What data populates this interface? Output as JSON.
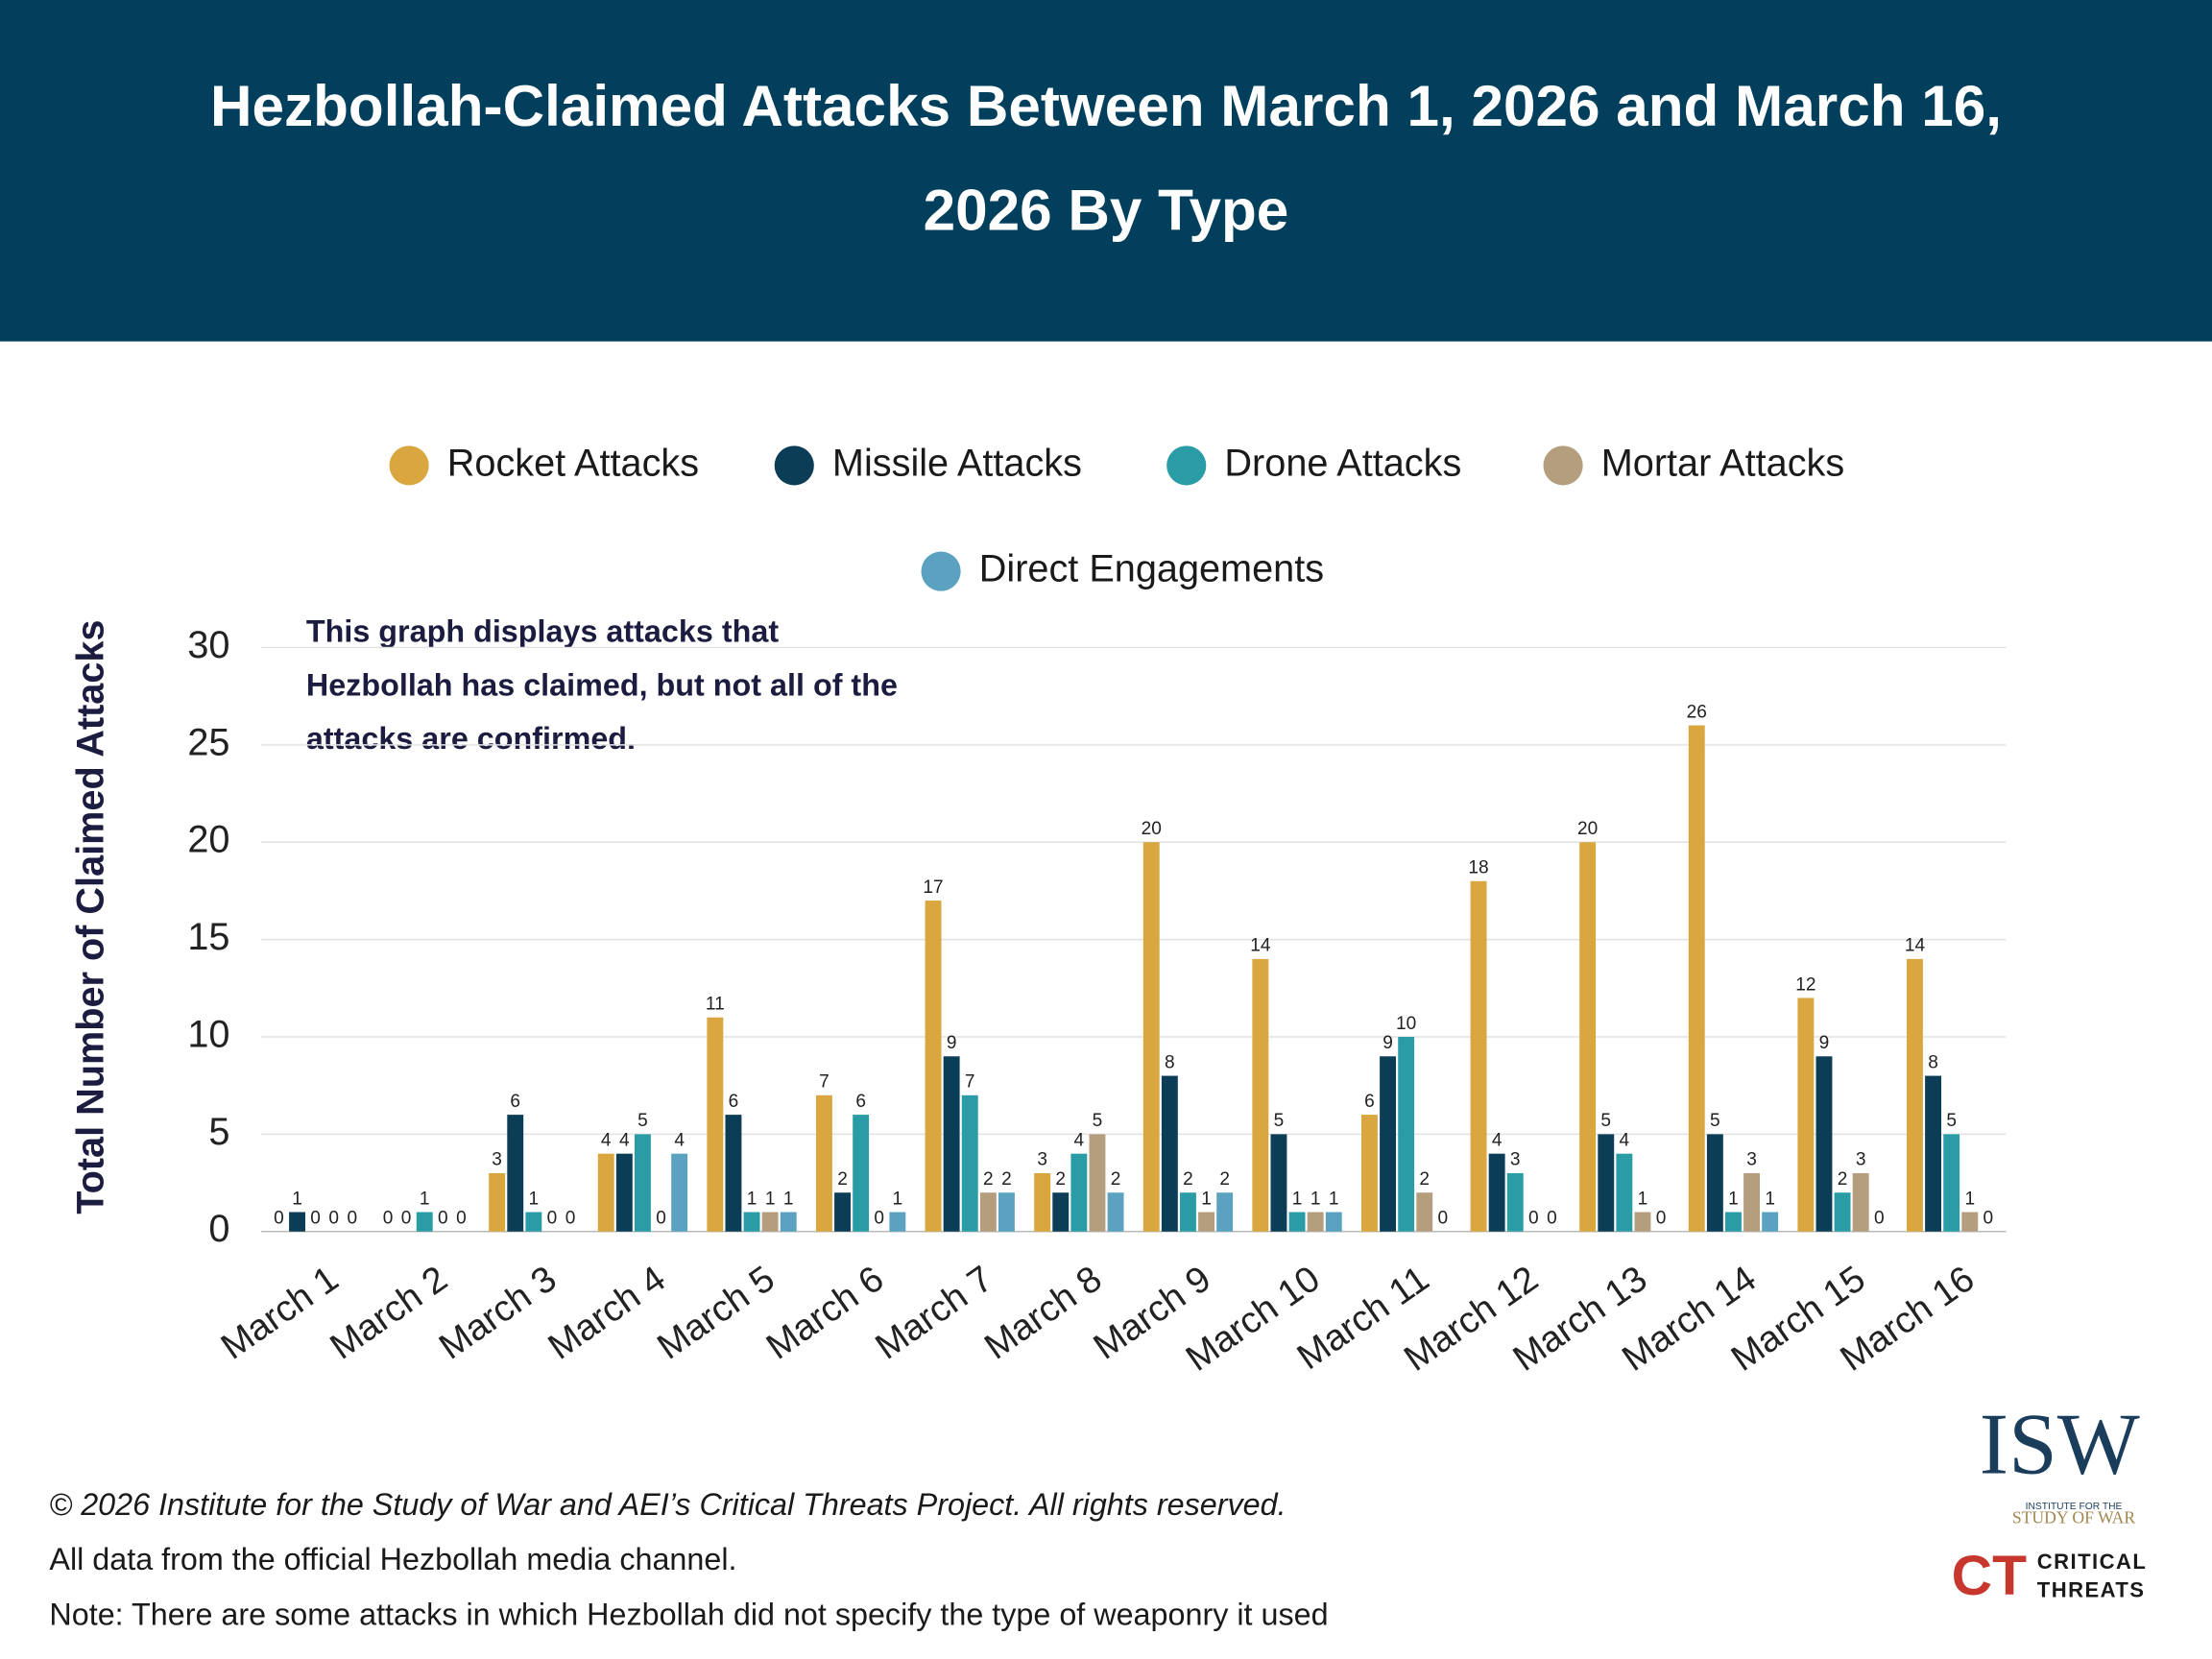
{
  "chart_data": {
    "type": "bar",
    "title": "Hezbollah-Claimed Attacks Between March 1, 2026 and March 16, 2026 By Type",
    "ylabel": "Total Number of Claimed Attacks",
    "annotation": "This graph displays attacks that Hezbollah has claimed, but not all of the attacks are confirmed.",
    "categories": [
      "March 1",
      "March 2",
      "March 3",
      "March 4",
      "March 5",
      "March 6",
      "March 7",
      "March 8",
      "March 9",
      "March 10",
      "March 11",
      "March 12",
      "March 13",
      "March 14",
      "March 15",
      "March 16"
    ],
    "series": [
      {
        "name": "Rocket Attacks",
        "color": "#d9a63f",
        "values": [
          0,
          0,
          3,
          4,
          11,
          7,
          17,
          3,
          20,
          14,
          6,
          18,
          20,
          26,
          12,
          14
        ]
      },
      {
        "name": "Missile Attacks",
        "color": "#0b3d57",
        "values": [
          1,
          0,
          6,
          4,
          6,
          2,
          9,
          2,
          8,
          5,
          9,
          4,
          5,
          5,
          9,
          8
        ]
      },
      {
        "name": "Drone Attacks",
        "color": "#2a9ca6",
        "values": [
          0,
          1,
          1,
          5,
          1,
          6,
          7,
          4,
          2,
          1,
          10,
          3,
          4,
          1,
          2,
          5
        ]
      },
      {
        "name": "Mortar Attacks",
        "color": "#b49e7e",
        "values": [
          0,
          0,
          0,
          0,
          1,
          0,
          2,
          5,
          1,
          1,
          2,
          0,
          1,
          3,
          3,
          1
        ]
      },
      {
        "name": "Direct Engagements",
        "color": "#5aa2c0",
        "values": [
          0,
          0,
          0,
          4,
          1,
          1,
          2,
          2,
          2,
          1,
          0,
          0,
          0,
          1,
          0,
          0
        ]
      }
    ],
    "ylim": [
      0,
      30
    ],
    "yticks": [
      0,
      5,
      10,
      15,
      20,
      25,
      30
    ],
    "grid": true,
    "footnotes": [
      "© 2026 Institute for the Study of War and AEI’s Critical Threats Project. All rights reserved.",
      "All data from the official Hezbollah media channel.",
      "Note: There are some attacks in which Hezbollah did not specify the type of weaponry it used"
    ]
  },
  "logos": {
    "isw": "ISW",
    "isw_line1": "INSTITUTE FOR THE",
    "isw_line2": "STUDY OF WAR",
    "ct": "CT",
    "ct_line1": "CRITICAL",
    "ct_line2": "THREATS"
  }
}
